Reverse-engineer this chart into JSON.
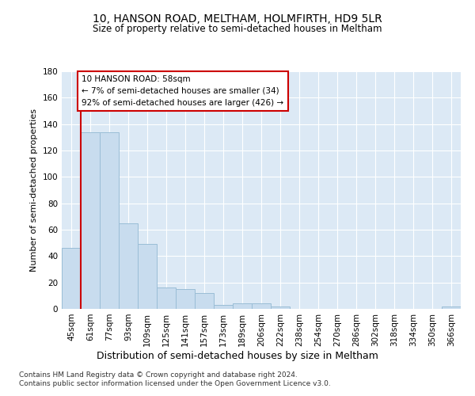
{
  "title": "10, HANSON ROAD, MELTHAM, HOLMFIRTH, HD9 5LR",
  "subtitle": "Size of property relative to semi-detached houses in Meltham",
  "xlabel": "Distribution of semi-detached houses by size in Meltham",
  "ylabel": "Number of semi-detached properties",
  "categories": [
    "45sqm",
    "61sqm",
    "77sqm",
    "93sqm",
    "109sqm",
    "125sqm",
    "141sqm",
    "157sqm",
    "173sqm",
    "189sqm",
    "206sqm",
    "222sqm",
    "238sqm",
    "254sqm",
    "270sqm",
    "286sqm",
    "302sqm",
    "318sqm",
    "334sqm",
    "350sqm",
    "366sqm"
  ],
  "values": [
    46,
    134,
    134,
    65,
    49,
    16,
    15,
    12,
    3,
    4,
    4,
    2,
    0,
    0,
    0,
    0,
    0,
    0,
    0,
    0,
    2
  ],
  "bar_color": "#c8dcee",
  "bar_edge_color": "#9abdd6",
  "highlight_line_color": "#cc0000",
  "annotation_title": "10 HANSON ROAD: 58sqm",
  "annotation_line1": "← 7% of semi-detached houses are smaller (34)",
  "annotation_line2": "92% of semi-detached houses are larger (426) →",
  "ylim": [
    0,
    180
  ],
  "yticks": [
    0,
    20,
    40,
    60,
    80,
    100,
    120,
    140,
    160,
    180
  ],
  "plot_bg_color": "#dce9f5",
  "grid_color": "#ffffff",
  "fig_bg_color": "#ffffff",
  "footer1": "Contains HM Land Registry data © Crown copyright and database right 2024.",
  "footer2": "Contains public sector information licensed under the Open Government Licence v3.0."
}
